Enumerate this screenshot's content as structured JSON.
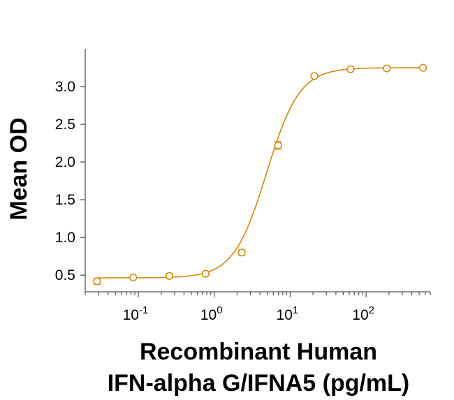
{
  "chart_data": {
    "type": "scatter",
    "title": "",
    "xlabel_lines": [
      "Recombinant Human",
      "IFN-alpha G/IFNA5 (pg/mL)"
    ],
    "ylabel": "Mean OD",
    "x_scale": "log",
    "xlim": [
      0.02,
      700
    ],
    "ylim": [
      0.28,
      3.5
    ],
    "y_ticks": [
      0.5,
      1.0,
      1.5,
      2.0,
      2.5,
      3.0
    ],
    "y_tick_labels": [
      "0.5",
      "1.0",
      "1.5",
      "2.0",
      "2.5",
      "3.0"
    ],
    "x_ticks": [
      {
        "value": 0.1,
        "base": "10",
        "exp": "-1"
      },
      {
        "value": 1,
        "base": "10",
        "exp": "0"
      },
      {
        "value": 10,
        "base": "10",
        "exp": "1"
      },
      {
        "value": 100,
        "base": "10",
        "exp": "2"
      }
    ],
    "grid": false,
    "legend": "none",
    "color": "#D4860B",
    "series": [
      {
        "x": [
          0.0286,
          0.0857,
          0.257,
          0.771,
          2.31,
          6.94,
          20.8,
          62.5,
          187.5,
          562.5
        ],
        "y": [
          0.42,
          0.47,
          0.49,
          0.52,
          0.8,
          2.22,
          3.14,
          3.23,
          3.24,
          3.25
        ],
        "error": [
          0.04,
          0.015,
          0.03,
          0.02,
          0.035,
          0.05,
          0.02,
          0.015,
          0.015,
          0.015
        ]
      }
    ],
    "fit": {
      "model": "4PL",
      "bottom": 0.465,
      "top": 3.25,
      "ec50": 4.9,
      "hill": 2.0
    }
  }
}
